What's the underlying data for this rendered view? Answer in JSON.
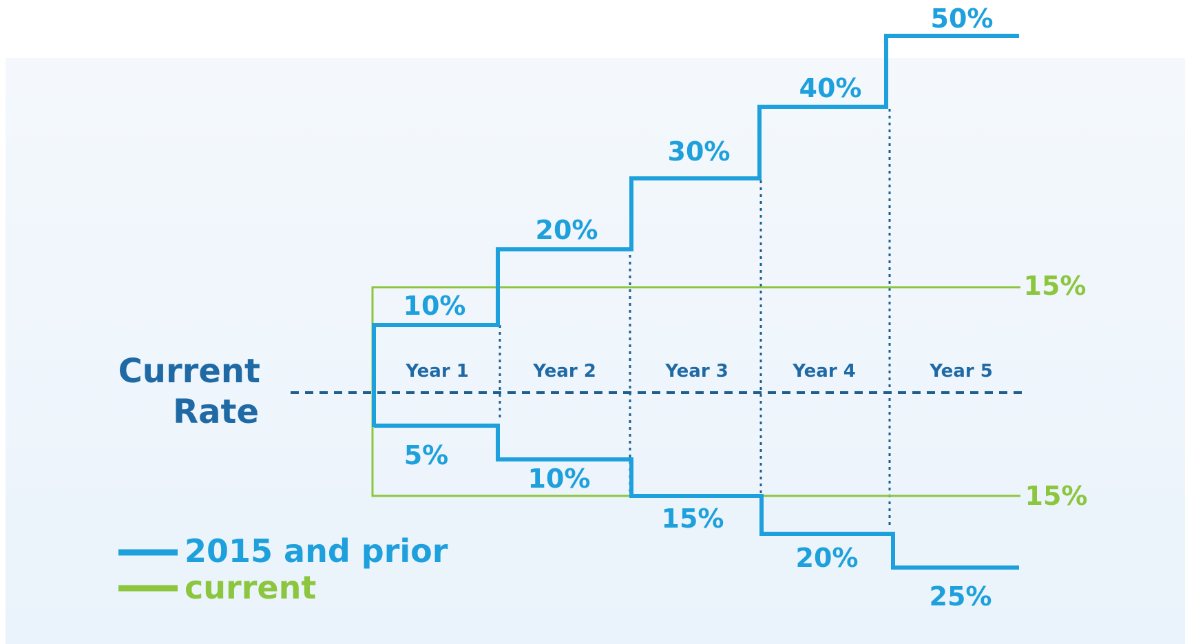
{
  "colors": {
    "blue": "#1ea0dc",
    "green": "#8cc63f",
    "navy": "#1f6aa5",
    "guide": "#1f5f8f"
  },
  "rate_label": {
    "line1": "Current",
    "line2": "Rate"
  },
  "years": [
    "Year 1",
    "Year 2",
    "Year 3",
    "Year 4",
    "Year 5"
  ],
  "upper_steps": [
    "10%",
    "20%",
    "30%",
    "40%",
    "50%"
  ],
  "lower_steps": [
    "5%",
    "10%",
    "15%",
    "20%",
    "25%"
  ],
  "current_upper": "15%",
  "current_lower": "15%",
  "legend": [
    {
      "label": "2015 and prior",
      "color": "#1ea0dc"
    },
    {
      "label": "current",
      "color": "#8cc63f"
    }
  ]
}
